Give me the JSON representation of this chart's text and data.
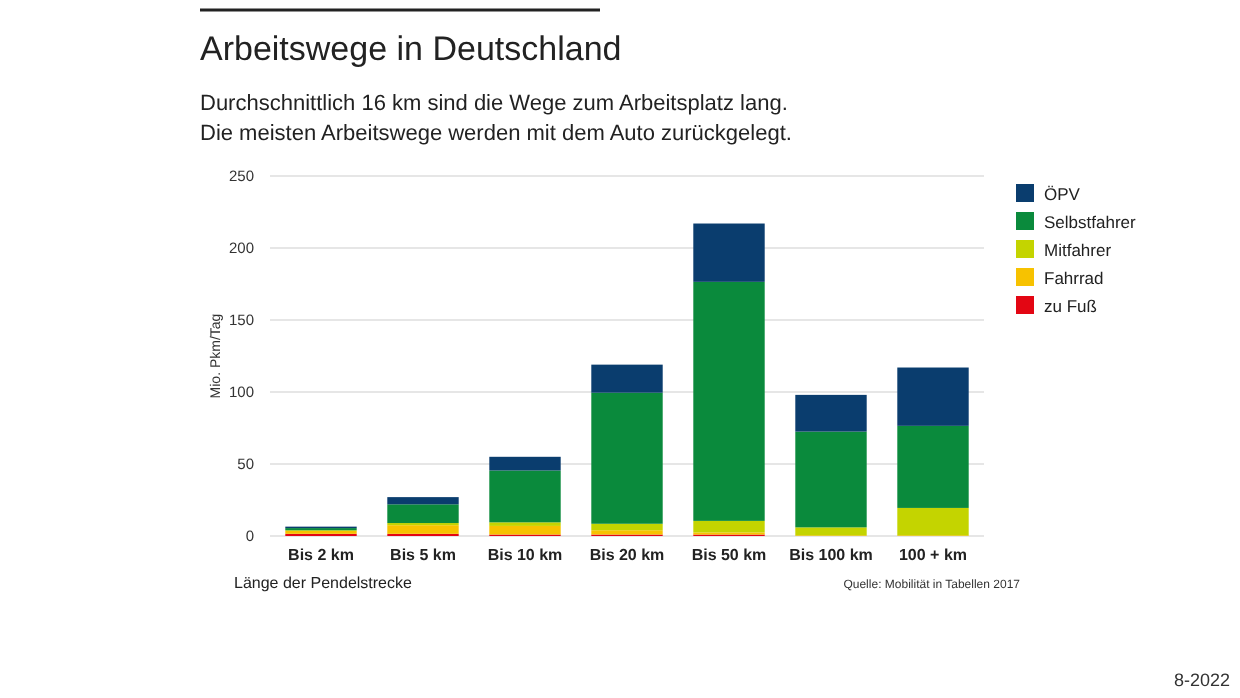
{
  "chart_data": {
    "type": "bar",
    "title": "Arbeitswege in Deutschland",
    "subtitle": "Durchschnittlich 16 km sind die Wege zum Arbeitsplatz lang.\nDie meisten Arbeitswege werden mit dem Auto zurückgelegt.",
    "ylabel": "Mio. Pkm/Tag",
    "xlabel": "Länge der Pendelstrecke",
    "categories": [
      "Bis 2 km",
      "Bis 5 km",
      "Bis 10 km",
      "Bis 20 km",
      "Bis 50 km",
      "Bis 100 km",
      "100 + km"
    ],
    "stacked": true,
    "series": [
      {
        "name": "zu Fuß",
        "color": "#e30613",
        "values": [
          1.5,
          1.5,
          1,
          1,
          1,
          0,
          0
        ]
      },
      {
        "name": "Fahrrad",
        "color": "#f7c200",
        "values": [
          2,
          6,
          6,
          3,
          1.5,
          0.5,
          0.5
        ]
      },
      {
        "name": "Mitfahrer",
        "color": "#c4d400",
        "values": [
          0.5,
          1.5,
          2.5,
          4.5,
          8,
          5.5,
          19
        ]
      },
      {
        "name": "Selbstfahrer",
        "color": "#0a8a3c",
        "values": [
          1.5,
          13,
          36,
          91,
          166,
          66.5,
          57
        ]
      },
      {
        "name": "ÖPV",
        "color": "#0a3d6e",
        "values": [
          1,
          5,
          9.5,
          19.5,
          40.5,
          25.5,
          40.5
        ]
      }
    ],
    "ylim": [
      0,
      250
    ],
    "yticks": [
      0,
      50,
      100,
      150,
      200,
      250
    ],
    "grid": "y",
    "legend": "top right",
    "annotations": [
      "Quelle: Mobilität in Tabellen 2017",
      "8-2022"
    ]
  }
}
